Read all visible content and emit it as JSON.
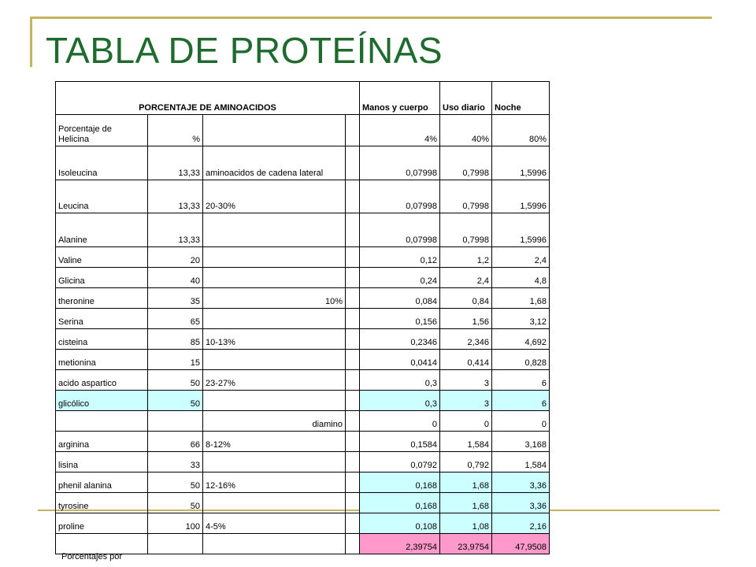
{
  "slide": {
    "title": "TABLA DE PROTEÍNAS",
    "footnote": "Porcentajes por"
  },
  "colors": {
    "title": "#1f6b2e",
    "rule": "#c8b45a",
    "cyan_cell": "#ccffff",
    "pink_cell": "#ff99cc"
  },
  "table": {
    "header": {
      "label": "PORCENTAJE  DE AMINOACIDOS",
      "col_manos": "Manos y cuerpo",
      "col_uso": "Uso diario",
      "col_noche": "Noche"
    },
    "rows": [
      {
        "name": "Porcentaje de Helicina",
        "pct": "%",
        "note": "",
        "mid": "",
        "manos": "4%",
        "uso": "40%",
        "noche": "80%"
      },
      {
        "name": "Isoleucina",
        "pct": "13,33",
        "note": "aminoacidos de cadena lateral",
        "mid": "",
        "manos": "0,07998",
        "uso": "0,7998",
        "noche": "1,5996"
      },
      {
        "name": "Leucina",
        "pct": "13,33",
        "note": "20-30%",
        "mid": "",
        "manos": "0,07998",
        "uso": "0,7998",
        "noche": "1,5996"
      },
      {
        "name": "Alanine",
        "pct": "13,33",
        "note": "",
        "mid": "",
        "manos": "0,07998",
        "uso": "0,7998",
        "noche": "1,5996"
      },
      {
        "name": "Valine",
        "pct": "20",
        "note": "",
        "mid": "",
        "manos": "0,12",
        "uso": "1,2",
        "noche": "2,4"
      },
      {
        "name": "Glicina",
        "pct": "40",
        "note": "",
        "mid": "",
        "manos": "0,24",
        "uso": "2,4",
        "noche": "4,8"
      },
      {
        "name": "theronine",
        "pct": "35",
        "note": "10%",
        "mid": "",
        "manos": "0,084",
        "uso": "0,84",
        "noche": "1,68"
      },
      {
        "name": "Serina",
        "pct": "65",
        "note": "",
        "mid": "",
        "manos": "0,156",
        "uso": "1,56",
        "noche": "3,12"
      },
      {
        "name": "cisteina",
        "pct": "85",
        "note": "10-13%",
        "mid": "",
        "manos": "0,2346",
        "uso": "2,346",
        "noche": "4,692"
      },
      {
        "name": "metionina",
        "pct": "15",
        "note": "",
        "mid": "",
        "manos": "0,0414",
        "uso": "0,414",
        "noche": "0,828"
      },
      {
        "name": "acido aspartico",
        "pct": "50",
        "note": "23-27%",
        "mid": "",
        "manos": "0,3",
        "uso": "3",
        "noche": "6"
      },
      {
        "name": "glicólico",
        "pct": "50",
        "note": "",
        "mid": "",
        "manos": "0,3",
        "uso": "3",
        "noche": "6"
      },
      {
        "name": "",
        "pct": "",
        "note": "diamino",
        "mid": "",
        "manos": "0",
        "uso": "0",
        "noche": "0"
      },
      {
        "name": "arginina",
        "pct": "66",
        "note": "8-12%",
        "mid": "",
        "manos": "0,1584",
        "uso": "1,584",
        "noche": "3,168"
      },
      {
        "name": "lisina",
        "pct": "33",
        "note": "",
        "mid": "",
        "manos": "0,0792",
        "uso": "0,792",
        "noche": "1,584"
      },
      {
        "name": "phenil alanina",
        "pct": "50",
        "note": "12-16%",
        "mid": "",
        "manos": "0,168",
        "uso": "1,68",
        "noche": "3,36"
      },
      {
        "name": "tyrosine",
        "pct": "50",
        "note": "",
        "mid": "",
        "manos": "0,168",
        "uso": "1,68",
        "noche": "3,36"
      },
      {
        "name": "proline",
        "pct": "100",
        "note": "4-5%",
        "mid": "",
        "manos": "0,108",
        "uso": "1,08",
        "noche": "2,16"
      },
      {
        "name": "",
        "pct": "",
        "note": "",
        "mid": "",
        "manos": "2,39754",
        "uso": "23,9754",
        "noche": "47,9508"
      }
    ]
  }
}
